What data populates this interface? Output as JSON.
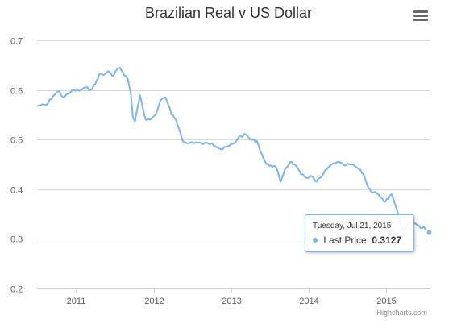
{
  "colors": {
    "series": "#7cb5ec",
    "grid": "#d8d8d8",
    "axis": "#c0d0e0",
    "text": "#333333",
    "tick": "#606060"
  },
  "menu_icon": "hamburger-menu-icon",
  "credit": "Highcharts.com",
  "tooltip": {
    "date": "Tuesday, Jul 21, 2015",
    "series_label": "Last Price:",
    "value": "0.3127"
  },
  "chart_data": {
    "type": "line",
    "title": "Brazilian Real v US Dollar",
    "xlabel": "",
    "ylabel": "",
    "xlim": [
      "2010-07-01",
      "2015-07-27"
    ],
    "ylim": [
      0.2,
      0.7
    ],
    "y_ticks": [
      0.2,
      0.3,
      0.4,
      0.5,
      0.6,
      0.7
    ],
    "x_ticks": [
      "2011",
      "2012",
      "2013",
      "2014",
      "2015"
    ],
    "grid": "horizontal",
    "legend": "none",
    "series": [
      {
        "name": "Last Price",
        "points": [
          [
            "2010-07-01",
            0.568
          ],
          [
            "2010-08-15",
            0.57
          ],
          [
            "2010-09-15",
            0.588
          ],
          [
            "2010-10-10",
            0.598
          ],
          [
            "2010-11-01",
            0.585
          ],
          [
            "2010-11-25",
            0.592
          ],
          [
            "2010-12-20",
            0.6
          ],
          [
            "2011-01-15",
            0.598
          ],
          [
            "2011-02-15",
            0.605
          ],
          [
            "2011-03-10",
            0.6
          ],
          [
            "2011-04-01",
            0.612
          ],
          [
            "2011-04-20",
            0.632
          ],
          [
            "2011-05-10",
            0.63
          ],
          [
            "2011-06-01",
            0.638
          ],
          [
            "2011-06-20",
            0.628
          ],
          [
            "2011-07-10",
            0.64
          ],
          [
            "2011-07-26",
            0.645
          ],
          [
            "2011-08-15",
            0.63
          ],
          [
            "2011-09-01",
            0.622
          ],
          [
            "2011-09-15",
            0.595
          ],
          [
            "2011-09-25",
            0.545
          ],
          [
            "2011-10-05",
            0.535
          ],
          [
            "2011-10-15",
            0.56
          ],
          [
            "2011-10-28",
            0.59
          ],
          [
            "2011-11-10",
            0.565
          ],
          [
            "2011-11-25",
            0.54
          ],
          [
            "2011-12-15",
            0.54
          ],
          [
            "2012-01-10",
            0.55
          ],
          [
            "2012-02-01",
            0.578
          ],
          [
            "2012-02-25",
            0.585
          ],
          [
            "2012-03-10",
            0.57
          ],
          [
            "2012-03-25",
            0.55
          ],
          [
            "2012-04-15",
            0.54
          ],
          [
            "2012-05-01",
            0.52
          ],
          [
            "2012-05-20",
            0.495
          ],
          [
            "2012-06-10",
            0.492
          ],
          [
            "2012-07-01",
            0.495
          ],
          [
            "2012-08-15",
            0.492
          ],
          [
            "2012-10-01",
            0.493
          ],
          [
            "2012-11-15",
            0.48
          ],
          [
            "2012-12-20",
            0.487
          ],
          [
            "2013-01-15",
            0.493
          ],
          [
            "2013-02-05",
            0.505
          ],
          [
            "2013-03-10",
            0.51
          ],
          [
            "2013-04-01",
            0.5
          ],
          [
            "2013-05-01",
            0.497
          ],
          [
            "2013-05-25",
            0.47
          ],
          [
            "2013-06-15",
            0.45
          ],
          [
            "2013-07-05",
            0.448
          ],
          [
            "2013-07-30",
            0.445
          ],
          [
            "2013-08-20",
            0.415
          ],
          [
            "2013-09-10",
            0.44
          ],
          [
            "2013-10-05",
            0.455
          ],
          [
            "2013-10-25",
            0.45
          ],
          [
            "2013-11-25",
            0.43
          ],
          [
            "2013-12-20",
            0.423
          ],
          [
            "2014-01-10",
            0.427
          ],
          [
            "2014-02-05",
            0.415
          ],
          [
            "2014-03-01",
            0.425
          ],
          [
            "2014-03-25",
            0.44
          ],
          [
            "2014-04-20",
            0.45
          ],
          [
            "2014-05-15",
            0.455
          ],
          [
            "2014-06-15",
            0.448
          ],
          [
            "2014-07-10",
            0.45
          ],
          [
            "2014-08-01",
            0.448
          ],
          [
            "2014-08-25",
            0.44
          ],
          [
            "2014-09-15",
            0.43
          ],
          [
            "2014-10-01",
            0.41
          ],
          [
            "2014-10-20",
            0.395
          ],
          [
            "2014-11-10",
            0.395
          ],
          [
            "2014-12-01",
            0.385
          ],
          [
            "2014-12-20",
            0.375
          ],
          [
            "2015-01-10",
            0.38
          ],
          [
            "2015-01-25",
            0.39
          ],
          [
            "2015-02-10",
            0.37
          ],
          [
            "2015-02-25",
            0.35
          ],
          [
            "2015-03-10",
            0.325
          ],
          [
            "2015-03-25",
            0.315
          ],
          [
            "2015-04-10",
            0.33
          ],
          [
            "2015-05-01",
            0.335
          ],
          [
            "2015-05-20",
            0.33
          ],
          [
            "2015-06-10",
            0.322
          ],
          [
            "2015-06-25",
            0.325
          ],
          [
            "2015-07-10",
            0.317
          ],
          [
            "2015-07-21",
            0.3127
          ],
          [
            "2015-07-27",
            0.309
          ]
        ]
      }
    ]
  }
}
